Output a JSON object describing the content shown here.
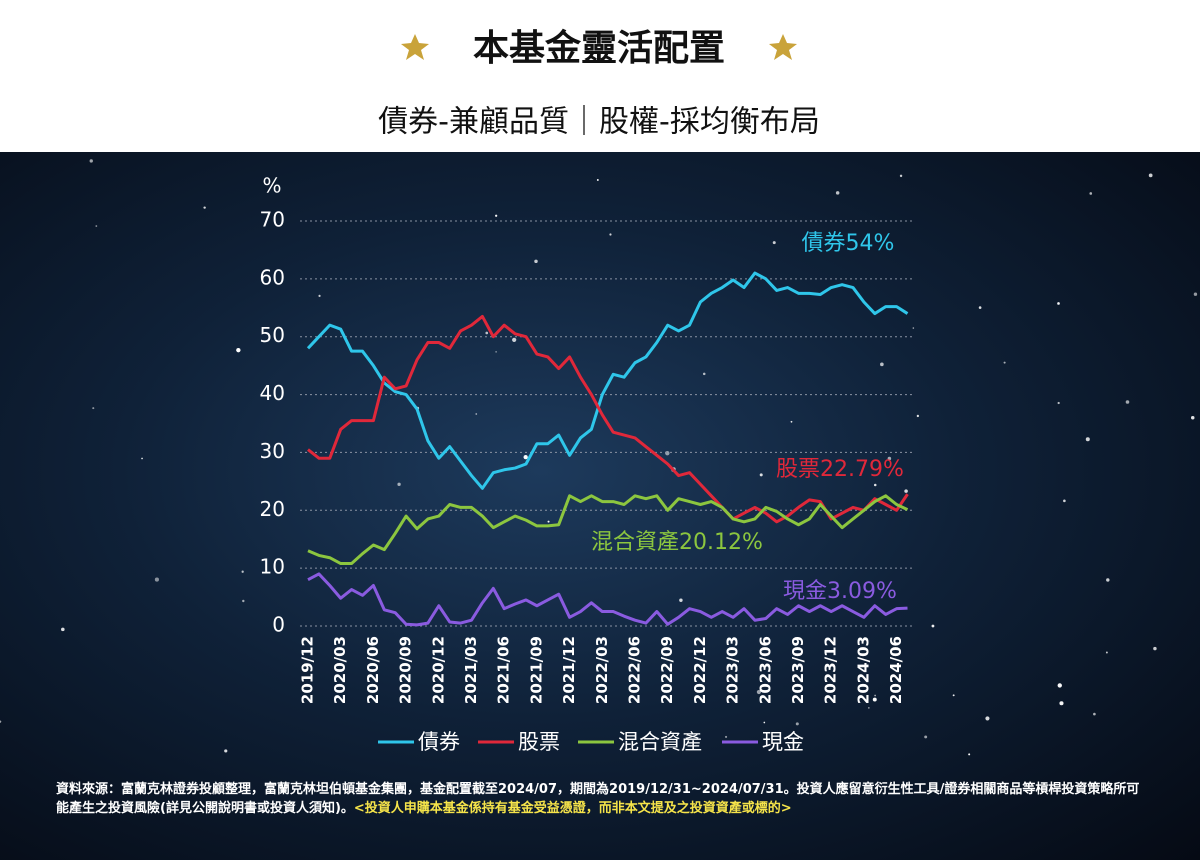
{
  "chart_data": {
    "type": "line",
    "title": "本基金靈活配置",
    "subtitle": "債券-兼顧品質｜股權-採均衡布局",
    "y_label": "%",
    "categories": [
      "2019/12",
      null,
      null,
      "2020/03",
      null,
      null,
      "2020/06",
      null,
      null,
      "2020/09",
      null,
      null,
      "2020/12",
      null,
      null,
      "2021/03",
      null,
      null,
      "2021/06",
      null,
      null,
      "2021/09",
      null,
      null,
      "2021/12",
      null,
      null,
      "2022/03",
      null,
      null,
      "2022/06",
      null,
      null,
      "2022/09",
      null,
      null,
      "2022/12",
      null,
      null,
      "2023/03",
      null,
      null,
      "2023/06",
      null,
      null,
      "2023/09",
      null,
      null,
      "2023/12",
      null,
      null,
      "2024/03",
      null,
      null,
      "2024/06",
      null
    ],
    "ylim": [
      0,
      70
    ],
    "yticks": [
      0,
      10,
      20,
      30,
      40,
      50,
      60,
      70
    ],
    "grid": true,
    "series": [
      {
        "name": "債券",
        "color": "#2fc6ea",
        "values": [
          48,
          50,
          52,
          51.3,
          47.5,
          47.5,
          45,
          42,
          40.5,
          40,
          37.5,
          32,
          29,
          31,
          28.5,
          26,
          23.8,
          26.5,
          27,
          27.3,
          28,
          31.5,
          31.5,
          33,
          29.5,
          32.5,
          34,
          40,
          43.5,
          43,
          45.5,
          46.5,
          49,
          52,
          51,
          52,
          56,
          57.5,
          58.5,
          59.8,
          58.5,
          61,
          60,
          58,
          58.5,
          57.5,
          57.5,
          57.3,
          58.5,
          59,
          58.5,
          56,
          54,
          55.2,
          55.2,
          54
        ]
      },
      {
        "name": "股票",
        "color": "#e0283a",
        "values": [
          30.5,
          29,
          29,
          34,
          35.5,
          35.5,
          35.5,
          43,
          41,
          41.5,
          46,
          49,
          49,
          48,
          51,
          52,
          53.5,
          50,
          52,
          50.5,
          50,
          47,
          46.5,
          44.5,
          46.5,
          43,
          40,
          36.5,
          33.5,
          33,
          32.5,
          31,
          29.5,
          28,
          26,
          26.5,
          24.5,
          22.5,
          20.5,
          18.5,
          19.5,
          20.5,
          19.5,
          18,
          19,
          20.5,
          21.8,
          21.5,
          18.5,
          19.5,
          20.5,
          20,
          22,
          21,
          20,
          22.79
        ]
      },
      {
        "name": "混合資產",
        "color": "#8cc63f",
        "values": [
          13,
          12.2,
          11.8,
          10.8,
          10.8,
          12.5,
          14,
          13.2,
          16,
          19,
          16.8,
          18.5,
          19,
          21,
          20.5,
          20.5,
          19,
          17,
          18,
          19,
          18.3,
          17.3,
          17.3,
          17.5,
          22.5,
          21.5,
          22.5,
          21.5,
          21.5,
          21,
          22.5,
          22,
          22.5,
          20,
          22,
          21.5,
          21,
          21.5,
          20.5,
          18.5,
          18,
          18.5,
          20.5,
          19.8,
          18.5,
          17.5,
          18.5,
          21,
          19,
          17,
          18.5,
          20,
          21.5,
          22.5,
          21,
          20.12
        ]
      },
      {
        "name": "現金",
        "color": "#8a5be0",
        "values": [
          8,
          9,
          7,
          4.8,
          6.3,
          5.3,
          7,
          2.8,
          2.3,
          0.3,
          0.2,
          0.5,
          3.5,
          0.7,
          0.5,
          1,
          4,
          6.5,
          3,
          3.8,
          4.5,
          3.5,
          4.5,
          5.5,
          1.5,
          2.5,
          4,
          2.5,
          2.5,
          1.7,
          1,
          0.5,
          2.5,
          0.3,
          1.5,
          3,
          2.5,
          1.5,
          2.5,
          1.5,
          3,
          1,
          1.3,
          3,
          2,
          3.5,
          2.5,
          3.5,
          2.5,
          3.5,
          2.5,
          1.5,
          3.5,
          2,
          3,
          3.09
        ]
      }
    ],
    "annotations": [
      "債券54%",
      "股票22.79%",
      "混合資產20.12%",
      "現金3.09%"
    ]
  },
  "footnote": {
    "text": "資料來源：富蘭克林證券投顧整理，富蘭克林坦伯頓基金集團，基金配置截至2024/07，期間為2019/12/31~2024/07/31。投資人應留意衍生性工具/證券相關商品等槓桿投資策略所可能產生之投資風險(詳見公開說明書或投資人須知)。",
    "highlight": "<投資人申購本基金係持有基金受益憑證，而非本文提及之投資資產或標的>"
  }
}
